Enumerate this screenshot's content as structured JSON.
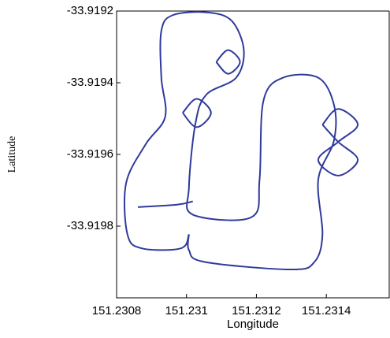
{
  "chart_data": {
    "type": "line",
    "x_label": "Longitude",
    "y_label": "Latitude",
    "xlim": [
      151.2308,
      151.23158
    ],
    "ylim": [
      -33.92,
      -33.9192
    ],
    "xticks": [
      151.2308,
      151.231,
      151.2312,
      151.2314
    ],
    "yticks": [
      -33.9192,
      -33.9194,
      -33.9196,
      -33.9198
    ],
    "color": "#2f3a9c",
    "x": [
      151.230861,
      151.230973,
      151.231018,
      null,
      151.231007,
      151.230984,
      151.230872,
      151.230831,
      151.230827,
      151.230883,
      151.230939,
      151.230928,
      151.230928,
      151.230962,
      151.231063,
      151.23113,
      151.231164,
      151.231142,
      151.231056,
      151.231025,
      151.231007,
      151.231018,
      151.231186,
      151.231209,
      151.23122,
      151.231276,
      151.231377,
      151.231422,
      151.231422,
      151.231377,
      151.231389,
      151.231366,
      151.231299,
      151.231052,
      151.231007,
      151.231007,
      null,
      151.231389,
      151.231434,
      151.23149,
      151.231434,
      151.231377,
      151.231434,
      151.23149,
      151.231434,
      151.231389,
      null,
      151.230989,
      151.231029,
      151.23107,
      151.231029,
      151.230989,
      null,
      151.231085,
      151.231119,
      151.231153,
      151.231119,
      151.231085
    ],
    "values": [
      -33.919747,
      -33.91974,
      -33.919731,
      null,
      -33.919823,
      -33.919862,
      -33.919862,
      -33.919823,
      -33.919681,
      -33.919572,
      -33.919495,
      -33.919386,
      -33.919255,
      -33.919211,
      -33.919204,
      -33.919228,
      -33.919309,
      -33.919386,
      -33.919434,
      -33.919517,
      -33.919692,
      -33.919768,
      -33.919775,
      -33.91967,
      -33.919451,
      -33.919386,
      -33.919386,
      -33.919462,
      -33.919561,
      -33.91967,
      -33.919823,
      -33.9199,
      -33.919921,
      -33.9199,
      -33.919867,
      -33.919823,
      null,
      -33.919517,
      -33.919473,
      -33.919517,
      -33.919565,
      -33.919615,
      -33.919659,
      -33.919615,
      -33.919565,
      -33.919517,
      null,
      -33.919484,
      -33.919445,
      -33.919484,
      -33.919524,
      -33.919484,
      null,
      -33.919342,
      -33.919309,
      -33.919342,
      -33.919375,
      -33.919342
    ]
  }
}
